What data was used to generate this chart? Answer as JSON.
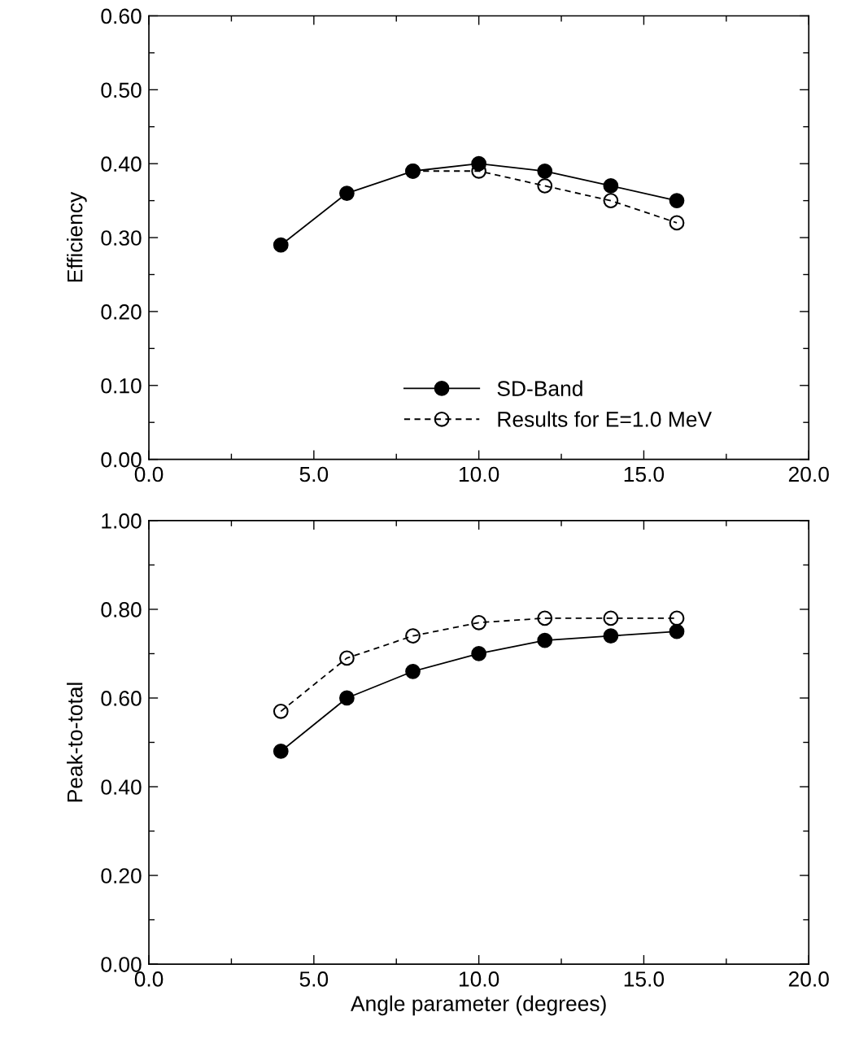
{
  "chart_data": [
    {
      "type": "line",
      "ylabel": "Efficiency",
      "x": [
        4,
        6,
        8,
        10,
        12,
        14,
        16
      ],
      "xlim": [
        0,
        20
      ],
      "xticks": [
        {
          "value": 0,
          "label": "0.0"
        },
        {
          "value": 2.5,
          "label": null
        },
        {
          "value": 5,
          "label": "5.0"
        },
        {
          "value": 7.5,
          "label": null
        },
        {
          "value": 10,
          "label": "10.0"
        },
        {
          "value": 12.5,
          "label": null
        },
        {
          "value": 15,
          "label": "15.0"
        },
        {
          "value": 17.5,
          "label": null
        },
        {
          "value": 20,
          "label": "20.0"
        }
      ],
      "ylim": [
        0,
        0.6
      ],
      "yticks": [
        {
          "value": 0,
          "label": "0.00"
        },
        {
          "value": 0.05,
          "label": null
        },
        {
          "value": 0.1,
          "label": "0.10"
        },
        {
          "value": 0.15,
          "label": null
        },
        {
          "value": 0.2,
          "label": "0.20"
        },
        {
          "value": 0.25,
          "label": null
        },
        {
          "value": 0.3,
          "label": "0.30"
        },
        {
          "value": 0.35,
          "label": null
        },
        {
          "value": 0.4,
          "label": "0.40"
        },
        {
          "value": 0.45,
          "label": null
        },
        {
          "value": 0.5,
          "label": "0.50"
        },
        {
          "value": 0.55,
          "label": null
        },
        {
          "value": 0.6,
          "label": "0.60"
        }
      ],
      "series": [
        {
          "name": "SD-Band",
          "color": "#000000",
          "marker": "circle",
          "line_style": "solid",
          "values": [
            0.29,
            0.36,
            0.39,
            0.4,
            0.39,
            0.37,
            0.35
          ]
        },
        {
          "name": "Results for E=1.0 MeV",
          "color": "#000000",
          "marker": "circle",
          "line_style": "dashed",
          "x": [
            8,
            10,
            12,
            14,
            16
          ],
          "values": [
            0.39,
            0.39,
            0.37,
            0.35,
            0.32
          ]
        }
      ],
      "legend": "bottom",
      "grid": false
    },
    {
      "type": "line",
      "xlabel": "Angle parameter (degrees)",
      "ylabel": "Peak-to-total",
      "x": [
        4,
        6,
        8,
        10,
        12,
        14,
        16
      ],
      "xlim": [
        0,
        20
      ],
      "xticks": [
        {
          "value": 0,
          "label": "0.0"
        },
        {
          "value": 2.5,
          "label": null
        },
        {
          "value": 5,
          "label": "5.0"
        },
        {
          "value": 7.5,
          "label": null
        },
        {
          "value": 10,
          "label": "10.0"
        },
        {
          "value": 12.5,
          "label": null
        },
        {
          "value": 15,
          "label": "15.0"
        },
        {
          "value": 17.5,
          "label": null
        },
        {
          "value": 20,
          "label": "20.0"
        }
      ],
      "ylim": [
        0,
        1.0
      ],
      "yticks": [
        {
          "value": 0,
          "label": "0.00"
        },
        {
          "value": 0.1,
          "label": null
        },
        {
          "value": 0.2,
          "label": "0.20"
        },
        {
          "value": 0.3,
          "label": null
        },
        {
          "value": 0.4,
          "label": "0.40"
        },
        {
          "value": 0.5,
          "label": null
        },
        {
          "value": 0.6,
          "label": "0.60"
        },
        {
          "value": 0.7,
          "label": null
        },
        {
          "value": 0.8,
          "label": "0.80"
        },
        {
          "value": 0.9,
          "label": null
        },
        {
          "value": 1.0,
          "label": "1.00"
        }
      ],
      "series": [
        {
          "color": "#000000",
          "marker": "circle",
          "line_style": "solid",
          "values": [
            0.48,
            0.6,
            0.66,
            0.7,
            0.73,
            0.74,
            0.75
          ]
        },
        {
          "color": "#000000",
          "marker": "circle",
          "line_style": "dashed",
          "values": [
            0.57,
            0.69,
            0.74,
            0.77,
            0.78,
            0.78,
            0.78
          ]
        }
      ],
      "legend": false,
      "grid": false
    }
  ]
}
